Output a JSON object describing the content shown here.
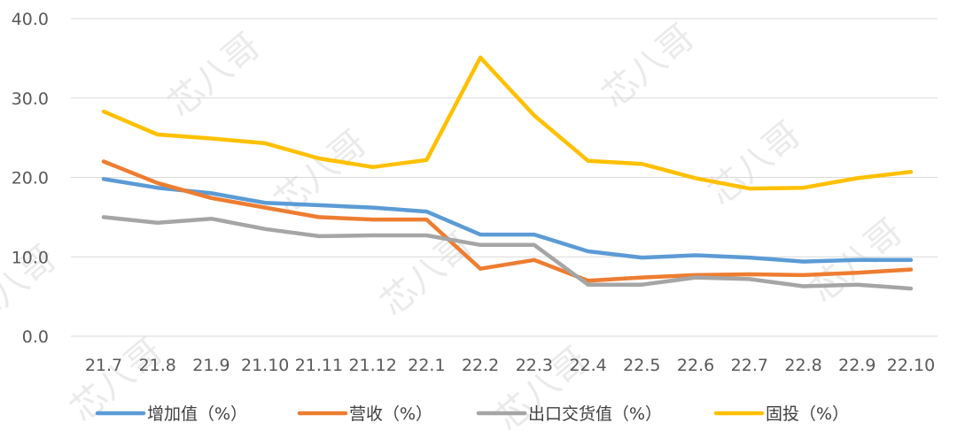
{
  "chart_data": {
    "type": "line",
    "title": "",
    "xlabel": "",
    "ylabel": "",
    "ylim": [
      0,
      40
    ],
    "yticks": [
      "0.0",
      "10.0",
      "20.0",
      "30.0",
      "40.0"
    ],
    "grid": true,
    "legend_position": "bottom",
    "categories": [
      "21.7",
      "21.8",
      "21.9",
      "21.10",
      "21.11",
      "21.12",
      "22.1",
      "22.2",
      "22.3",
      "22.4",
      "22.5",
      "22.6",
      "22.7",
      "22.8",
      "22.9",
      "22.10"
    ],
    "series": [
      {
        "name": "增加值（%）",
        "color": "#5b9bd5",
        "values": [
          19.8,
          18.7,
          18.0,
          16.8,
          16.5,
          16.2,
          15.7,
          12.8,
          12.8,
          10.7,
          9.9,
          10.2,
          9.9,
          9.4,
          9.6,
          9.6
        ]
      },
      {
        "name": "营收（%）",
        "color": "#ed7d31",
        "values": [
          22.0,
          19.3,
          17.4,
          16.2,
          15.0,
          14.7,
          14.7,
          8.5,
          9.6,
          7.0,
          7.4,
          7.7,
          7.8,
          7.7,
          8.0,
          8.4
        ]
      },
      {
        "name": "出口交货值（%）",
        "color": "#a5a5a5",
        "values": [
          15.0,
          14.3,
          14.8,
          13.5,
          12.6,
          12.7,
          12.7,
          11.5,
          11.5,
          6.5,
          6.5,
          7.4,
          7.2,
          6.3,
          6.5,
          6.0
        ]
      },
      {
        "name": "固投（%）",
        "color": "#ffc000",
        "values": [
          28.3,
          25.4,
          24.9,
          24.3,
          22.4,
          21.3,
          22.2,
          35.1,
          27.8,
          22.1,
          21.7,
          19.9,
          18.6,
          18.7,
          19.9,
          20.7
        ]
      }
    ]
  },
  "watermark": {
    "text": "芯八哥"
  }
}
